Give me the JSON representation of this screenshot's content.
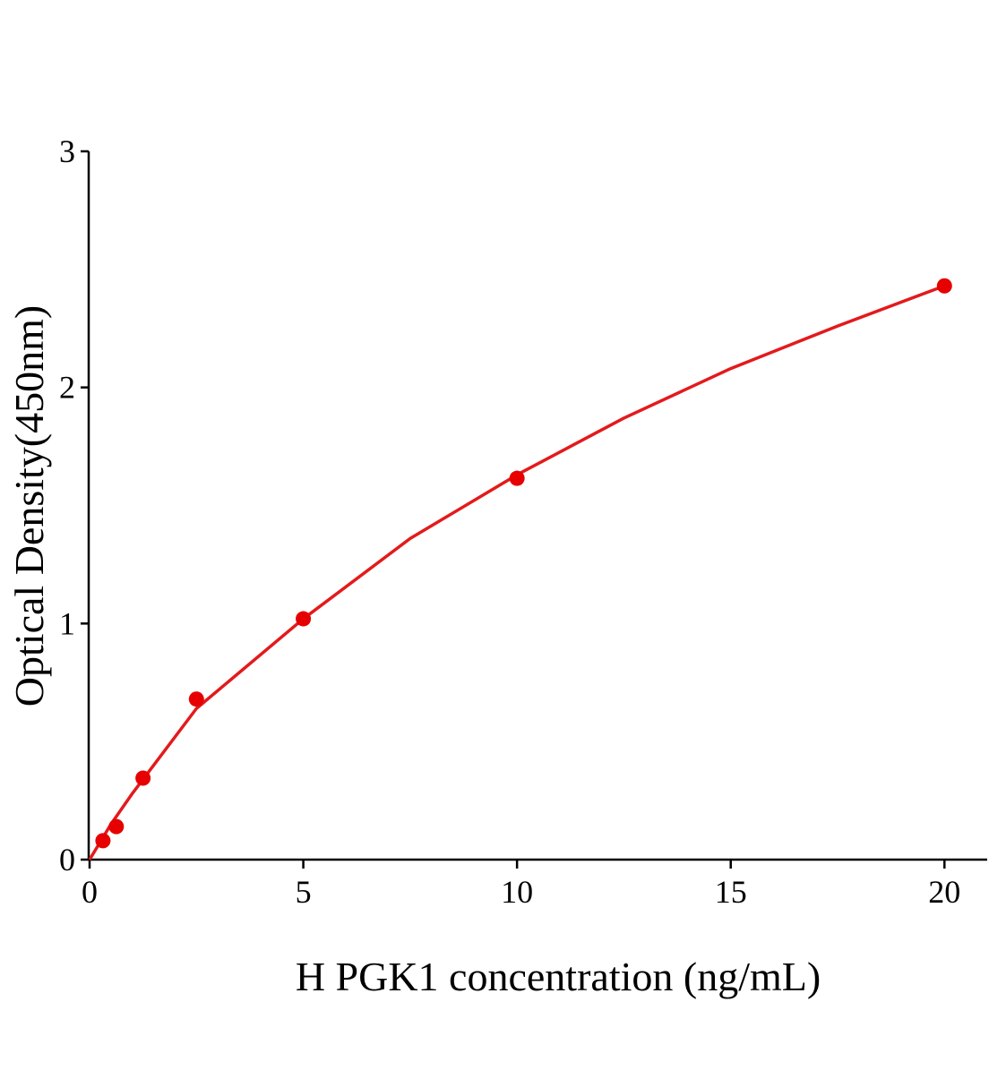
{
  "chart_data": {
    "type": "scatter",
    "x_label": "H PGK1 concentration (ng/mL)",
    "y_label": "Optical Density(450nm)",
    "xlim": [
      0,
      21
    ],
    "ylim": [
      0,
      3
    ],
    "xticks": [
      0,
      5,
      10,
      15,
      20
    ],
    "yticks": [
      0,
      1,
      2,
      3
    ],
    "grid": false,
    "series": [
      {
        "kind": "points",
        "color": "#e60000",
        "x": [
          0.3125,
          0.625,
          1.25,
          2.5,
          5,
          10,
          20
        ],
        "values": [
          0.08,
          0.14,
          0.345,
          0.68,
          1.02,
          1.615,
          2.43
        ]
      },
      {
        "kind": "fit",
        "color": "#e31a1c",
        "x": [
          0,
          0.5,
          1,
          2.5,
          5,
          7.5,
          10,
          12.5,
          15,
          17.5,
          20
        ],
        "values": [
          0,
          0.15,
          0.28,
          0.64,
          1.02,
          1.36,
          1.63,
          1.87,
          2.08,
          2.26,
          2.43
        ]
      }
    ]
  }
}
